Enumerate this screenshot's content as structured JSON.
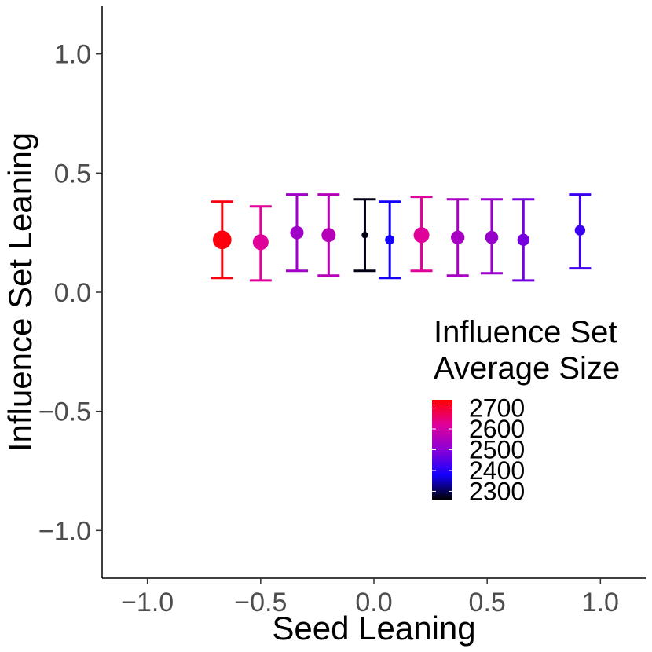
{
  "chart_data": {
    "type": "scatter",
    "subtype": "point-with-error-bars",
    "xlabel": "Seed Leaning",
    "ylabel": "Influence Set Leaning",
    "xlim": [
      -1.2,
      1.2
    ],
    "ylim": [
      -1.2,
      1.2
    ],
    "x_ticks": [
      -1.0,
      -0.5,
      0.0,
      0.5,
      1.0
    ],
    "x_tick_labels": [
      "−1.0",
      "−0.5",
      "0.0",
      "0.5",
      "1.0"
    ],
    "y_ticks": [
      1.0,
      0.5,
      0.0,
      -0.5,
      -1.0
    ],
    "y_tick_labels": [
      "1.0",
      "0.5",
      "0.0",
      "−0.5",
      "−1.0"
    ],
    "grid": false,
    "points": [
      {
        "x": -0.67,
        "y": 0.22,
        "ymin": 0.06,
        "ymax": 0.38,
        "size_value": 2730
      },
      {
        "x": -0.5,
        "y": 0.21,
        "ymin": 0.05,
        "ymax": 0.36,
        "size_value": 2620
      },
      {
        "x": -0.34,
        "y": 0.25,
        "ymin": 0.09,
        "ymax": 0.41,
        "size_value": 2530
      },
      {
        "x": -0.2,
        "y": 0.24,
        "ymin": 0.07,
        "ymax": 0.41,
        "size_value": 2560
      },
      {
        "x": -0.04,
        "y": 0.24,
        "ymin": 0.09,
        "ymax": 0.39,
        "size_value": 2270
      },
      {
        "x": 0.07,
        "y": 0.22,
        "ymin": 0.06,
        "ymax": 0.38,
        "size_value": 2380
      },
      {
        "x": 0.21,
        "y": 0.24,
        "ymin": 0.09,
        "ymax": 0.4,
        "size_value": 2620
      },
      {
        "x": 0.37,
        "y": 0.23,
        "ymin": 0.07,
        "ymax": 0.39,
        "size_value": 2540
      },
      {
        "x": 0.52,
        "y": 0.23,
        "ymin": 0.08,
        "ymax": 0.39,
        "size_value": 2520
      },
      {
        "x": 0.66,
        "y": 0.22,
        "ymin": 0.05,
        "ymax": 0.39,
        "size_value": 2480
      },
      {
        "x": 0.91,
        "y": 0.26,
        "ymin": 0.1,
        "ymax": 0.41,
        "size_value": 2420
      }
    ],
    "legend": {
      "title_line1": "Influence Set",
      "title_line2": "Average Size",
      "placement": "center-right",
      "range": [
        2260,
        2740
      ],
      "breaks": [
        2700,
        2600,
        2500,
        2400,
        2300
      ],
      "break_labels": [
        "2700",
        "2600",
        "2500",
        "2400",
        "2300"
      ],
      "gradient_colors": [
        "#ff0000",
        "#e0009a",
        "#8a00d6",
        "#1400ff",
        "#000000"
      ]
    }
  }
}
